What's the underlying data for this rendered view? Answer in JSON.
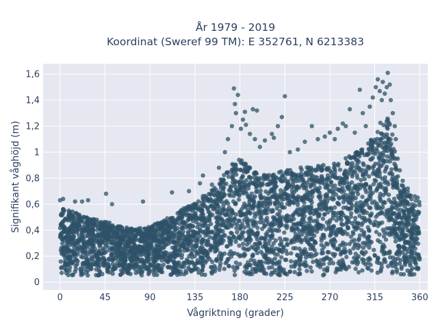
{
  "chart_data": {
    "type": "scatter",
    "title": "År 1979 - 2019",
    "subtitle": "Koordinat (Sweref 99 TM): E 352761, N 6213383",
    "xlabel": "Vågriktning (grader)",
    "ylabel": "Signifikant våghöjd (m)",
    "xlim": [
      -17,
      368
    ],
    "ylim": [
      -0.06,
      1.68
    ],
    "x_ticks": [
      0,
      45,
      90,
      135,
      180,
      225,
      270,
      315,
      360
    ],
    "x_tick_labels": [
      "0",
      "45",
      "90",
      "135",
      "180",
      "225",
      "270",
      "315",
      "360"
    ],
    "y_ticks": [
      0,
      0.2,
      0.4,
      0.6,
      0.8,
      1.0,
      1.2,
      1.4,
      1.6
    ],
    "y_tick_labels": [
      "0",
      "0,2",
      "0,4",
      "0,6",
      "0,8",
      "1",
      "1,2",
      "1,4",
      "1,6"
    ],
    "grid": true,
    "marker_color": "#2d5268",
    "plot_background": "#e5e8f0",
    "envelope": {
      "description": "upper edge of the dense point cloud per direction bin",
      "x": [
        0,
        10,
        20,
        30,
        45,
        60,
        75,
        90,
        105,
        120,
        135,
        150,
        160,
        170,
        180,
        190,
        200,
        210,
        225,
        240,
        255,
        270,
        285,
        300,
        310,
        315,
        320,
        325,
        330,
        335,
        340,
        350,
        360
      ],
      "y": [
        0.6,
        0.55,
        0.52,
        0.5,
        0.47,
        0.43,
        0.41,
        0.43,
        0.48,
        0.55,
        0.62,
        0.7,
        0.78,
        0.92,
        0.95,
        0.88,
        0.82,
        0.84,
        0.86,
        0.88,
        0.9,
        0.9,
        0.95,
        1.02,
        1.08,
        1.15,
        1.22,
        1.28,
        1.25,
        1.05,
        0.78,
        0.68,
        0.62
      ],
      "lower_bound": 0.05
    },
    "outliers": [
      {
        "x": 0,
        "y": 0.63
      },
      {
        "x": 3,
        "y": 0.64
      },
      {
        "x": 15,
        "y": 0.62
      },
      {
        "x": 22,
        "y": 0.62
      },
      {
        "x": 28,
        "y": 0.63
      },
      {
        "x": 46,
        "y": 0.68
      },
      {
        "x": 52,
        "y": 0.6
      },
      {
        "x": 83,
        "y": 0.62
      },
      {
        "x": 112,
        "y": 0.69
      },
      {
        "x": 129,
        "y": 0.7
      },
      {
        "x": 140,
        "y": 0.76
      },
      {
        "x": 143,
        "y": 0.82
      },
      {
        "x": 152,
        "y": 0.75
      },
      {
        "x": 159,
        "y": 0.88
      },
      {
        "x": 165,
        "y": 1.0
      },
      {
        "x": 168,
        "y": 1.1
      },
      {
        "x": 172,
        "y": 1.2
      },
      {
        "x": 174,
        "y": 1.49
      },
      {
        "x": 175,
        "y": 1.37
      },
      {
        "x": 176,
        "y": 1.3
      },
      {
        "x": 178,
        "y": 1.44
      },
      {
        "x": 181,
        "y": 1.18
      },
      {
        "x": 183,
        "y": 1.25
      },
      {
        "x": 185,
        "y": 1.31
      },
      {
        "x": 186,
        "y": 1.21
      },
      {
        "x": 190,
        "y": 1.14
      },
      {
        "x": 193,
        "y": 1.33
      },
      {
        "x": 195,
        "y": 1.1
      },
      {
        "x": 197,
        "y": 1.32
      },
      {
        "x": 200,
        "y": 1.04
      },
      {
        "x": 205,
        "y": 1.09
      },
      {
        "x": 212,
        "y": 1.14
      },
      {
        "x": 214,
        "y": 1.11
      },
      {
        "x": 218,
        "y": 1.2
      },
      {
        "x": 222,
        "y": 1.27
      },
      {
        "x": 225,
        "y": 1.43
      },
      {
        "x": 230,
        "y": 1.0
      },
      {
        "x": 238,
        "y": 1.02
      },
      {
        "x": 245,
        "y": 1.08
      },
      {
        "x": 252,
        "y": 1.2
      },
      {
        "x": 258,
        "y": 1.1
      },
      {
        "x": 265,
        "y": 1.12
      },
      {
        "x": 270,
        "y": 1.15
      },
      {
        "x": 275,
        "y": 1.1
      },
      {
        "x": 278,
        "y": 1.18
      },
      {
        "x": 283,
        "y": 1.22
      },
      {
        "x": 286,
        "y": 1.2
      },
      {
        "x": 290,
        "y": 1.33
      },
      {
        "x": 295,
        "y": 1.15
      },
      {
        "x": 300,
        "y": 1.48
      },
      {
        "x": 303,
        "y": 1.3
      },
      {
        "x": 306,
        "y": 1.2
      },
      {
        "x": 310,
        "y": 1.35
      },
      {
        "x": 313,
        "y": 1.42
      },
      {
        "x": 316,
        "y": 1.5
      },
      {
        "x": 318,
        "y": 1.56
      },
      {
        "x": 320,
        "y": 1.47
      },
      {
        "x": 322,
        "y": 1.4
      },
      {
        "x": 323,
        "y": 1.54
      },
      {
        "x": 325,
        "y": 1.45
      },
      {
        "x": 327,
        "y": 1.5
      },
      {
        "x": 328,
        "y": 1.61
      },
      {
        "x": 330,
        "y": 1.52
      },
      {
        "x": 331,
        "y": 1.4
      },
      {
        "x": 333,
        "y": 1.3
      },
      {
        "x": 335,
        "y": 1.2
      },
      {
        "x": 336,
        "y": 1.1
      },
      {
        "x": 338,
        "y": 0.95
      },
      {
        "x": 340,
        "y": 0.86
      },
      {
        "x": 343,
        "y": 0.78
      },
      {
        "x": 348,
        "y": 0.72
      },
      {
        "x": 355,
        "y": 0.66
      },
      {
        "x": 358,
        "y": 0.65
      }
    ]
  }
}
